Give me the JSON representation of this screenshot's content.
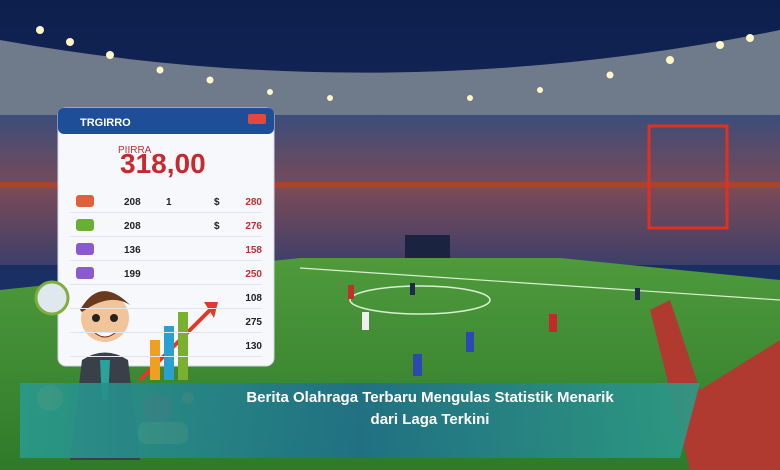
{
  "card": {
    "header": "TRGIRRO",
    "label": "PIIRRA",
    "total": "318,00",
    "rows": [
      [
        "208",
        "1",
        "$",
        "280"
      ],
      [
        "208",
        "$",
        "276"
      ],
      [
        "136",
        "158"
      ],
      [
        "199",
        "250"
      ],
      [
        "108"
      ],
      [
        "275"
      ],
      [
        "130"
      ]
    ]
  },
  "caption": {
    "lines": [
      "Berita Olahraga Terbaru Mengulas Statistik Menarik",
      "dari Laga Terkini"
    ]
  }
}
